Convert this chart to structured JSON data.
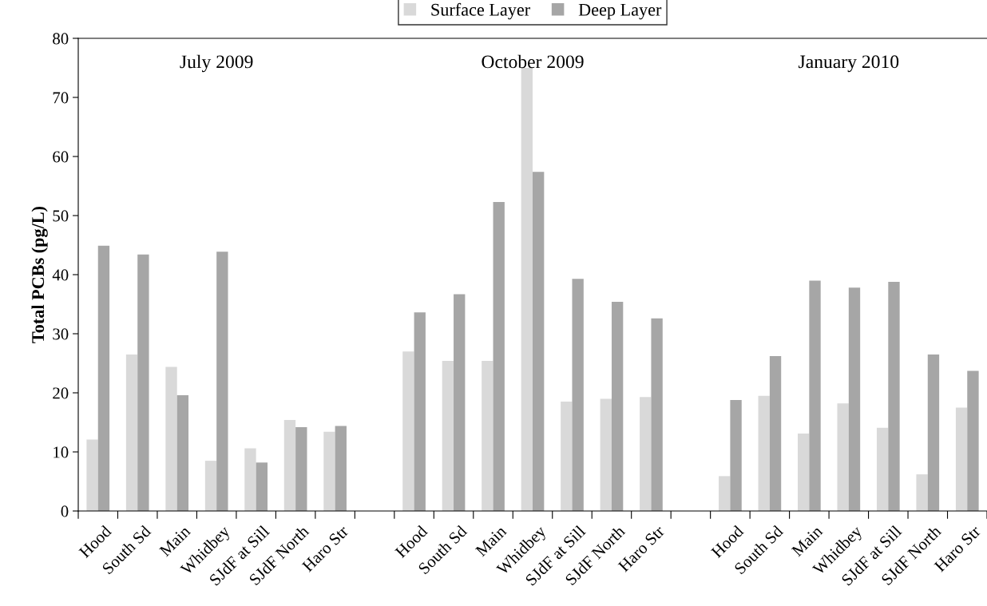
{
  "chart_data": {
    "type": "bar",
    "ylabel": "Total PCBs (pg/L)",
    "categories": [
      "Hood",
      "South Sd",
      "Main",
      "Whidbey",
      "SJdF at Sill",
      "SJdF North",
      "Haro Str",
      null,
      "Hood",
      "South Sd",
      "Main",
      "Whidbey",
      "SJdF at Sill",
      "SJdF North",
      "Haro Str",
      null,
      "Hood",
      "South Sd",
      "Main",
      "Whidbey",
      "SJdF at Sill",
      "SJdF North",
      "Haro Str"
    ],
    "series": [
      {
        "name": "Surface Layer",
        "color": "#d9d9d9",
        "values": [
          12.1,
          26.5,
          24.4,
          8.5,
          10.6,
          15.4,
          13.4,
          null,
          27.0,
          25.4,
          25.4,
          75.0,
          18.5,
          19.0,
          19.3,
          null,
          5.9,
          19.5,
          13.1,
          18.2,
          14.1,
          6.2,
          17.5
        ]
      },
      {
        "name": "Deep Layer",
        "color": "#a6a6a6",
        "values": [
          44.9,
          43.4,
          19.6,
          43.9,
          8.2,
          14.2,
          14.4,
          null,
          33.6,
          36.7,
          52.3,
          57.4,
          39.3,
          35.4,
          32.6,
          null,
          18.8,
          26.2,
          39.0,
          37.8,
          38.8,
          26.5,
          23.7
        ]
      }
    ],
    "annotations": [
      "July 2009",
      "October 2009",
      "January 2010"
    ],
    "ylim": [
      0,
      80
    ],
    "yticks": [
      0,
      10,
      20,
      30,
      40,
      50,
      60,
      70,
      80
    ],
    "grid": false,
    "legend": "top"
  }
}
